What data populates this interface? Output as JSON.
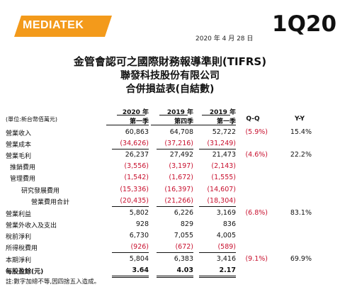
{
  "header": {
    "logo_text": "MEDIATEK",
    "quarter": "1Q20",
    "date": "2020 年 4 月 28 日"
  },
  "titles": {
    "line1": "金管會認可之國際財務報導準則(TIFRS)",
    "line2": "聯發科技股份有限公司",
    "line3": "合併損益表(自結數)"
  },
  "table": {
    "unit_label": "(單位:新台幣佰萬元)",
    "columns": [
      {
        "year": "2020 年",
        "quarter": "第一季"
      },
      {
        "year": "2019 年",
        "quarter": "第四季"
      },
      {
        "year": "2019 年",
        "quarter": "第一季"
      }
    ],
    "qq_label": "Q-Q",
    "yy_label": "Y-Y",
    "rows": [
      {
        "label": "營業收入",
        "v1": "60,863",
        "v2": "64,708",
        "v3": "52,722",
        "qq": "(5.9%)",
        "yy": "15.4%"
      },
      {
        "label": "營業成本",
        "v1": "(34,626)",
        "v2": "(37,216)",
        "v3": "(31,249)",
        "qq": "",
        "yy": ""
      },
      {
        "label": "營業毛利",
        "v1": "26,237",
        "v2": "27,492",
        "v3": "21,473",
        "qq": "(4.6%)",
        "yy": "22.2%"
      },
      {
        "label": "推銷費用",
        "v1": "(3,556)",
        "v2": "(3,197)",
        "v3": "(2,143)",
        "qq": "",
        "yy": ""
      },
      {
        "label": "管理費用",
        "v1": "(1,542)",
        "v2": "(1,672)",
        "v3": "(1,555)",
        "qq": "",
        "yy": ""
      },
      {
        "label": "研究發展費用",
        "v1": "(15,336)",
        "v2": "(16,397)",
        "v3": "(14,607)",
        "qq": "",
        "yy": ""
      },
      {
        "label": "營業費用合計",
        "v1": "(20,435)",
        "v2": "(21,266)",
        "v3": "(18,304)",
        "qq": "",
        "yy": ""
      },
      {
        "label": "營業利益",
        "v1": "5,802",
        "v2": "6,226",
        "v3": "3,169",
        "qq": "(6.8%)",
        "yy": "83.1%"
      },
      {
        "label": "營業外收入及支出",
        "v1": "928",
        "v2": "829",
        "v3": "836",
        "qq": "",
        "yy": ""
      },
      {
        "label": "稅前淨利",
        "v1": "6,730",
        "v2": "7,055",
        "v3": "4,005",
        "qq": "",
        "yy": ""
      },
      {
        "label": "所得稅費用",
        "v1": "(926)",
        "v2": "(672)",
        "v3": "(589)",
        "qq": "",
        "yy": ""
      },
      {
        "label": "本期淨利",
        "v1": "5,804",
        "v2": "6,383",
        "v3": "3,416",
        "qq": "(9.1%)",
        "yy": "69.9%"
      },
      {
        "label": "每股盈餘(元)",
        "v1": "3.64",
        "v2": "4.03",
        "v3": "2.17",
        "qq": "",
        "yy": ""
      }
    ]
  },
  "footnote": "註:數字加總不等,因四捨五入造成。",
  "colors": {
    "logo": "#f39a1b",
    "negative": "#c8102e"
  }
}
